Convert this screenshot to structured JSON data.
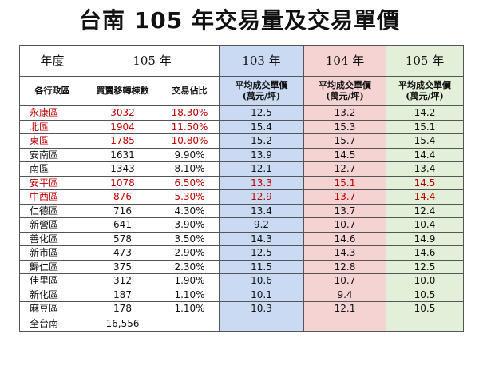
{
  "title": "台南 105 年交易量及交易單價",
  "header": {
    "year_label": "年度",
    "year_main": "105 年",
    "year_103": "103 年",
    "year_104": "104 年",
    "year_105": "105 年",
    "col_district": "各行政區",
    "col_transfers": "買賣移轉棟數",
    "col_share": "交易佔比",
    "col_avg_price": "平均成交單價",
    "col_unit": "(萬元/坪)"
  },
  "colors": {
    "col_103": "#c9daf2",
    "col_104": "#f5d3d3",
    "col_105": "#e2efd9",
    "highlight_text": "#c00000"
  },
  "rows": [
    {
      "district": "永康區",
      "transfers": "3032",
      "share": "18.30%",
      "p103": "12.5",
      "p104": "13.2",
      "p105": "14.2",
      "highlight": "cols1-3"
    },
    {
      "district": "北區",
      "transfers": "1904",
      "share": "11.50%",
      "p103": "15.4",
      "p104": "15.3",
      "p105": "15.1",
      "highlight": "cols1-3"
    },
    {
      "district": "東區",
      "transfers": "1785",
      "share": "10.80%",
      "p103": "15.2",
      "p104": "15.7",
      "p105": "15.4",
      "highlight": "cols1-3"
    },
    {
      "district": "安南區",
      "transfers": "1631",
      "share": "9.90%",
      "p103": "13.9",
      "p104": "14.5",
      "p105": "14.4",
      "highlight": "none"
    },
    {
      "district": "南區",
      "transfers": "1343",
      "share": "8.10%",
      "p103": "12.1",
      "p104": "12.7",
      "p105": "13.4",
      "highlight": "none"
    },
    {
      "district": "安平區",
      "transfers": "1078",
      "share": "6.50%",
      "p103": "13.3",
      "p104": "15.1",
      "p105": "14.5",
      "highlight": "all"
    },
    {
      "district": "中西區",
      "transfers": "876",
      "share": "5.30%",
      "p103": "12.9",
      "p104": "13.7",
      "p105": "14.4",
      "highlight": "all"
    },
    {
      "district": "仁德區",
      "transfers": "716",
      "share": "4.30%",
      "p103": "13.4",
      "p104": "13.7",
      "p105": "12.4",
      "highlight": "none"
    },
    {
      "district": "新營區",
      "transfers": "641",
      "share": "3.90%",
      "p103": "9.2",
      "p104": "10.7",
      "p105": "10.4",
      "highlight": "none"
    },
    {
      "district": "善化區",
      "transfers": "578",
      "share": "3.50%",
      "p103": "14.3",
      "p104": "14.6",
      "p105": "14.9",
      "highlight": "none"
    },
    {
      "district": "新市區",
      "transfers": "473",
      "share": "2.90%",
      "p103": "12.5",
      "p104": "14.3",
      "p105": "14.6",
      "highlight": "none"
    },
    {
      "district": "歸仁區",
      "transfers": "375",
      "share": "2.30%",
      "p103": "11.5",
      "p104": "12.8",
      "p105": "12.5",
      "highlight": "none"
    },
    {
      "district": "佳里區",
      "transfers": "312",
      "share": "1.90%",
      "p103": "10.6",
      "p104": "10.7",
      "p105": "10.0",
      "highlight": "none"
    },
    {
      "district": "新化區",
      "transfers": "187",
      "share": "1.10%",
      "p103": "10.1",
      "p104": "9.4",
      "p105": "10.5",
      "highlight": "none"
    },
    {
      "district": "麻豆區",
      "transfers": "178",
      "share": "1.10%",
      "p103": "10.3",
      "p104": "12.1",
      "p105": "10.5",
      "highlight": "none"
    }
  ],
  "total": {
    "district": "全台南",
    "transfers": "16,556",
    "share": "",
    "p103": "",
    "p104": "",
    "p105": ""
  }
}
